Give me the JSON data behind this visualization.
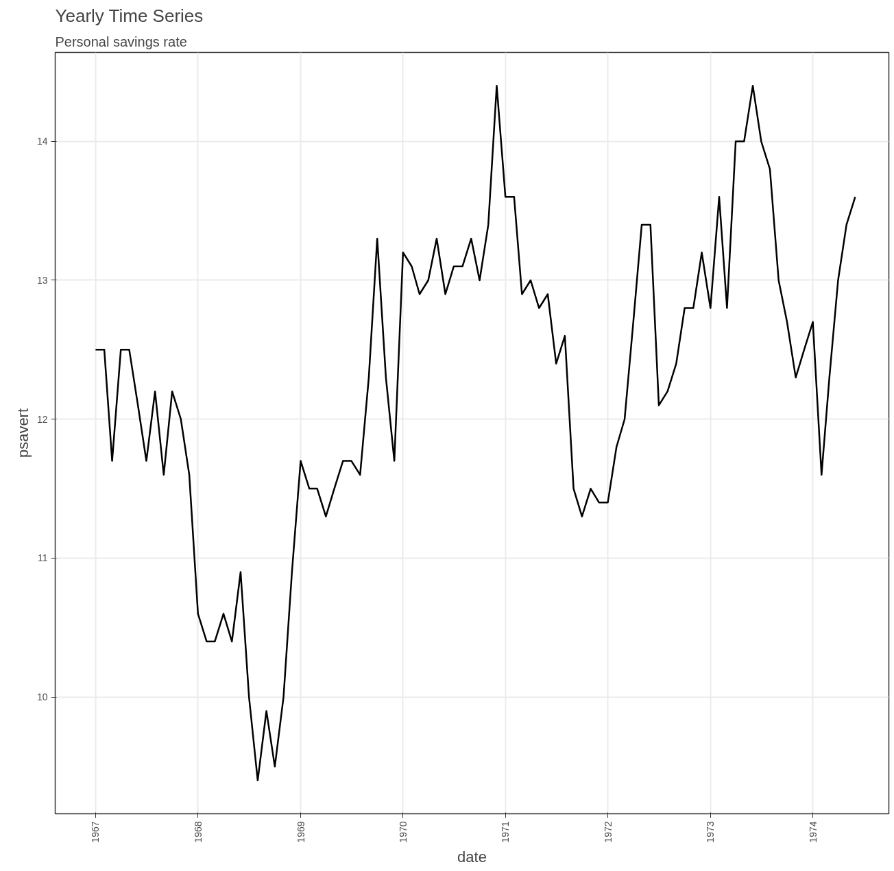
{
  "chart_data": {
    "type": "line",
    "title": "Yearly Time Series",
    "subtitle": "Personal savings rate",
    "xlabel": "date",
    "ylabel": "psavert",
    "x": [
      "1967-01",
      "1967-02",
      "1967-03",
      "1967-04",
      "1967-05",
      "1967-06",
      "1967-07",
      "1967-08",
      "1967-09",
      "1967-10",
      "1967-11",
      "1967-12",
      "1968-01",
      "1968-02",
      "1968-03",
      "1968-04",
      "1968-05",
      "1968-06",
      "1968-07",
      "1968-08",
      "1968-09",
      "1968-10",
      "1968-11",
      "1968-12",
      "1969-01",
      "1969-02",
      "1969-03",
      "1969-04",
      "1969-05",
      "1969-06",
      "1969-07",
      "1969-08",
      "1969-09",
      "1969-10",
      "1969-11",
      "1969-12",
      "1970-01",
      "1970-02",
      "1970-03",
      "1970-04",
      "1970-05",
      "1970-06",
      "1970-07",
      "1970-08",
      "1970-09",
      "1970-10",
      "1970-11",
      "1970-12",
      "1971-01",
      "1971-02",
      "1971-03",
      "1971-04",
      "1971-05",
      "1971-06",
      "1971-07",
      "1971-08",
      "1971-09",
      "1971-10",
      "1971-11",
      "1971-12",
      "1972-01",
      "1972-02",
      "1972-03",
      "1972-04",
      "1972-05",
      "1972-06",
      "1972-07",
      "1972-08",
      "1972-09",
      "1972-10",
      "1972-11",
      "1972-12",
      "1973-01",
      "1973-02",
      "1973-03",
      "1973-04",
      "1973-05",
      "1973-06",
      "1973-07",
      "1973-08",
      "1973-09",
      "1973-10",
      "1973-11",
      "1973-12",
      "1974-01",
      "1974-02",
      "1974-03",
      "1974-04",
      "1974-05",
      "1974-06"
    ],
    "series": [
      {
        "color": "#000000",
        "values": [
          12.5,
          12.5,
          11.7,
          12.5,
          12.5,
          12.1,
          11.7,
          12.2,
          11.6,
          12.2,
          12.0,
          11.6,
          10.6,
          10.4,
          10.4,
          10.6,
          10.4,
          10.9,
          10.0,
          9.4,
          9.9,
          9.5,
          10.0,
          10.9,
          11.7,
          11.5,
          11.5,
          11.3,
          11.5,
          11.7,
          11.7,
          11.6,
          12.3,
          13.3,
          12.3,
          11.7,
          13.2,
          13.1,
          12.9,
          13.0,
          13.3,
          12.9,
          13.1,
          13.1,
          13.3,
          13.0,
          13.4,
          14.4,
          13.6,
          13.6,
          12.9,
          13.0,
          12.8,
          12.9,
          12.4,
          12.6,
          11.5,
          11.3,
          11.5,
          11.4,
          11.4,
          11.8,
          12.0,
          12.7,
          13.4,
          13.4,
          12.1,
          12.2,
          12.4,
          12.8,
          12.8,
          13.2,
          12.8,
          13.6,
          12.8,
          14.0,
          14.0,
          14.4,
          14.0,
          13.8,
          13.0,
          12.7,
          12.3,
          12.5,
          12.7,
          11.6,
          12.3,
          13.0,
          13.4,
          13.6
        ]
      }
    ],
    "xlim": [
      "1966-08-10",
      "1974-09-29"
    ],
    "xticks": [
      {
        "value": "1967-01-01",
        "label": "1967"
      },
      {
        "value": "1968-01-01",
        "label": "1968"
      },
      {
        "value": "1969-01-01",
        "label": "1969"
      },
      {
        "value": "1970-01-01",
        "label": "1970"
      },
      {
        "value": "1971-01-01",
        "label": "1971"
      },
      {
        "value": "1972-01-01",
        "label": "1972"
      },
      {
        "value": "1973-01-01",
        "label": "1973"
      },
      {
        "value": "1974-01-01",
        "label": "1974"
      }
    ],
    "ylim": [
      9.16,
      14.64
    ],
    "yticks": [
      10,
      11,
      12,
      13,
      14
    ],
    "grid": true,
    "line_style": "solid"
  }
}
